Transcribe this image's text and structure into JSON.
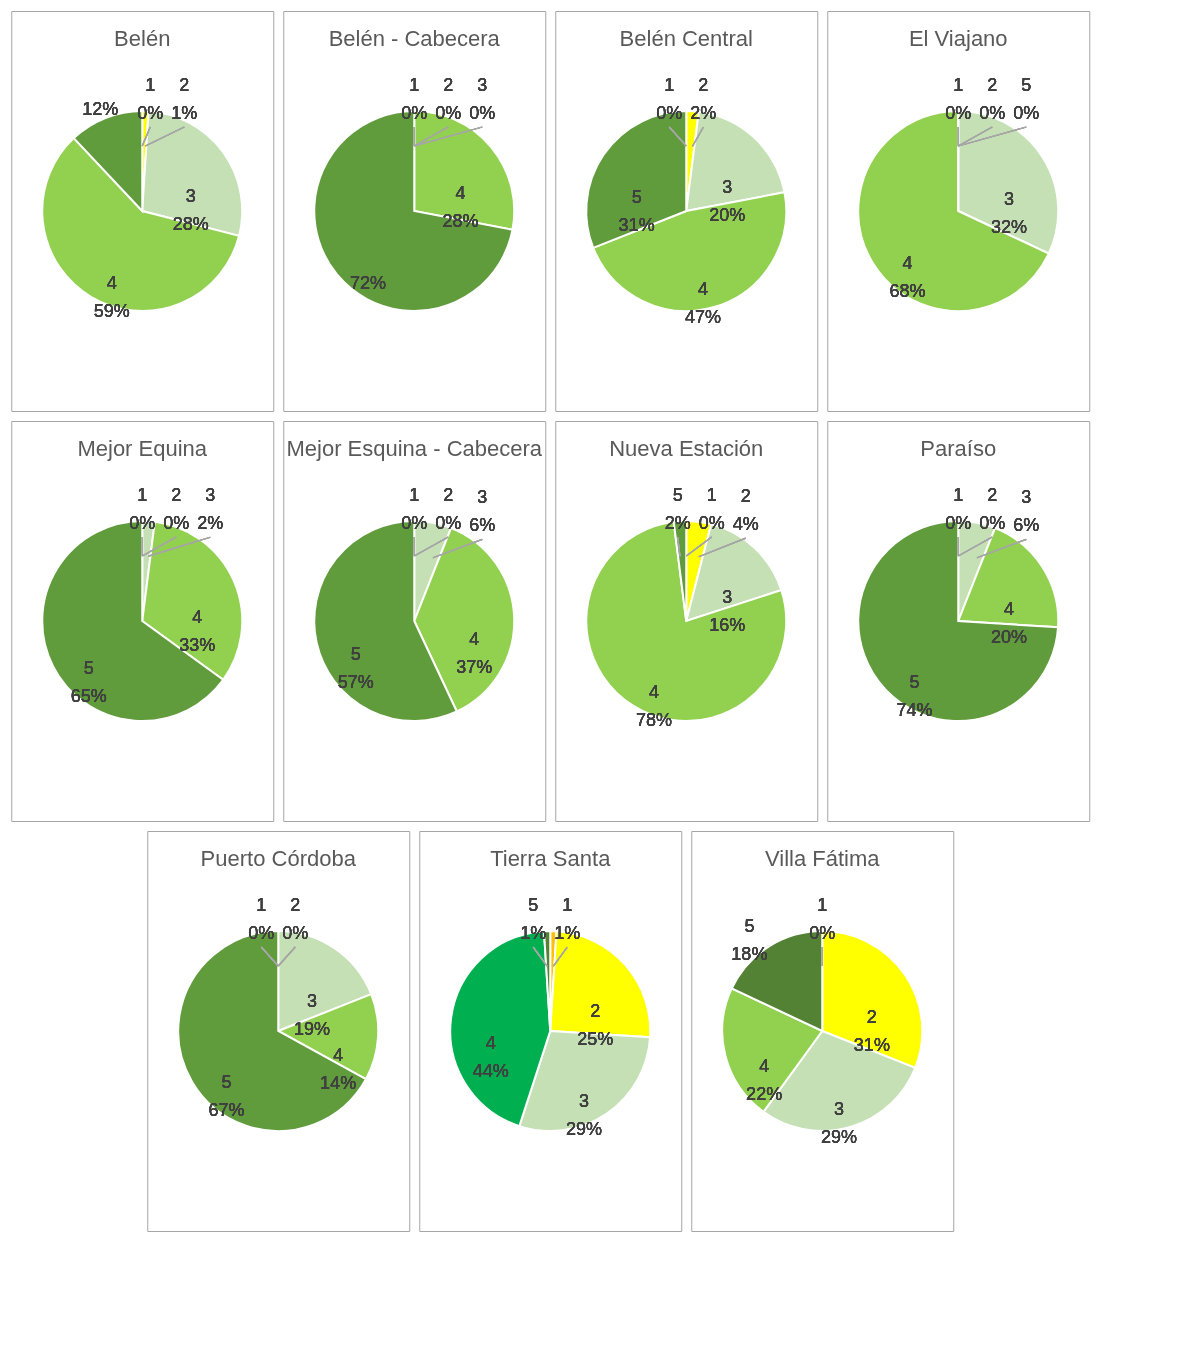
{
  "chart_data": [
    {
      "type": "pie",
      "title": "Belén",
      "categories": [
        "1",
        "2",
        "3",
        "4",
        null
      ],
      "values": [
        0,
        1,
        28,
        59,
        12
      ],
      "value_labels": [
        "0%",
        "1%",
        "28%",
        "59%",
        "12%"
      ],
      "colors": [
        "#ffc000",
        "#ffff00",
        "#c5e0b4",
        "#92d050",
        "#609b3c"
      ],
      "data_labels": true,
      "legend": false
    },
    {
      "type": "pie",
      "title": "Belén - Cabecera",
      "categories": [
        "1",
        "2",
        "3",
        "4",
        null
      ],
      "values": [
        0,
        0,
        0,
        28,
        72
      ],
      "value_labels": [
        "0%",
        "0%",
        "0%",
        "28%",
        "72%"
      ],
      "colors": [
        "#ffc000",
        "#ffff00",
        "#c5e0b4",
        "#92d050",
        "#609b3c"
      ],
      "data_labels": true,
      "legend": false
    },
    {
      "type": "pie",
      "title": "Belén Central",
      "categories": [
        "1",
        "2",
        "3",
        "4",
        "5"
      ],
      "values": [
        0,
        2,
        20,
        47,
        31
      ],
      "value_labels": [
        "0%",
        "2%",
        "20%",
        "47%",
        "31%"
      ],
      "colors": [
        "#ffc000",
        "#ffff00",
        "#c5e0b4",
        "#92d050",
        "#609b3c"
      ],
      "data_labels": true,
      "legend": false
    },
    {
      "type": "pie",
      "title": "El Viajano",
      "categories": [
        "1",
        "2",
        "3",
        "4",
        "5"
      ],
      "values": [
        0,
        0,
        32,
        68,
        0
      ],
      "value_labels": [
        "0%",
        "0%",
        "32%",
        "68%",
        "0%"
      ],
      "colors": [
        "#ffc000",
        "#ffff00",
        "#c5e0b4",
        "#92d050",
        "#609b3c"
      ],
      "data_labels": true,
      "legend": false
    },
    {
      "type": "pie",
      "title": "Mejor Equina",
      "categories": [
        "1",
        "2",
        "3",
        "4",
        "5"
      ],
      "values": [
        0,
        0,
        2,
        33,
        65
      ],
      "value_labels": [
        "0%",
        "0%",
        "2%",
        "33%",
        "65%"
      ],
      "colors": [
        "#ffc000",
        "#ffff00",
        "#c5e0b4",
        "#92d050",
        "#609b3c"
      ],
      "data_labels": true,
      "legend": false
    },
    {
      "type": "pie",
      "title": "Mejor Esquina - Cabecera",
      "categories": [
        "1",
        "2",
        "3",
        "4",
        "5"
      ],
      "values": [
        0,
        0,
        6,
        37,
        57
      ],
      "value_labels": [
        "0%",
        "0%",
        "6%",
        "37%",
        "57%"
      ],
      "colors": [
        "#ffc000",
        "#ffff00",
        "#c5e0b4",
        "#92d050",
        "#609b3c"
      ],
      "data_labels": true,
      "legend": false
    },
    {
      "type": "pie",
      "title": "Nueva Estación",
      "categories": [
        "1",
        "2",
        "3",
        "4",
        "5"
      ],
      "values": [
        0,
        4,
        16,
        78,
        2
      ],
      "value_labels": [
        "0%",
        "4%",
        "16%",
        "78%",
        "2%"
      ],
      "colors": [
        "#ffc000",
        "#ffff00",
        "#c5e0b4",
        "#92d050",
        "#609b3c"
      ],
      "data_labels": true,
      "legend": false
    },
    {
      "type": "pie",
      "title": "Paraíso",
      "categories": [
        "1",
        "2",
        "3",
        "4",
        "5"
      ],
      "values": [
        0,
        0,
        6,
        20,
        74
      ],
      "value_labels": [
        "0%",
        "0%",
        "6%",
        "20%",
        "74%"
      ],
      "colors": [
        "#ffc000",
        "#ffff00",
        "#c5e0b4",
        "#92d050",
        "#609b3c"
      ],
      "data_labels": true,
      "legend": false
    },
    {
      "type": "pie",
      "title": "Puerto Córdoba",
      "categories": [
        "1",
        "2",
        "3",
        "4",
        "5"
      ],
      "values": [
        0,
        0,
        19,
        14,
        67
      ],
      "value_labels": [
        "0%",
        "0%",
        "19%",
        "14%",
        "67%"
      ],
      "colors": [
        "#ffc000",
        "#ffff00",
        "#c5e0b4",
        "#92d050",
        "#609b3c"
      ],
      "data_labels": true,
      "legend": false
    },
    {
      "type": "pie",
      "title": "Tierra Santa",
      "categories": [
        "1",
        "2",
        "3",
        "4",
        "5"
      ],
      "values": [
        1,
        25,
        29,
        44,
        1
      ],
      "value_labels": [
        "1%",
        "25%",
        "29%",
        "44%",
        "1%"
      ],
      "colors": [
        "#ffc000",
        "#ffff00",
        "#c5e0b4",
        "#00b050",
        "#548235"
      ],
      "data_labels": true,
      "legend": false
    },
    {
      "type": "pie",
      "title": "Villa Fátima",
      "categories": [
        "1",
        "2",
        "3",
        "4",
        "5"
      ],
      "values": [
        0,
        31,
        29,
        22,
        18
      ],
      "value_labels": [
        "0%",
        "31%",
        "29%",
        "22%",
        "18%"
      ],
      "colors": [
        "#ffc000",
        "#ffff00",
        "#c5e0b4",
        "#92d050",
        "#548235"
      ],
      "data_labels": true,
      "legend": false
    }
  ]
}
